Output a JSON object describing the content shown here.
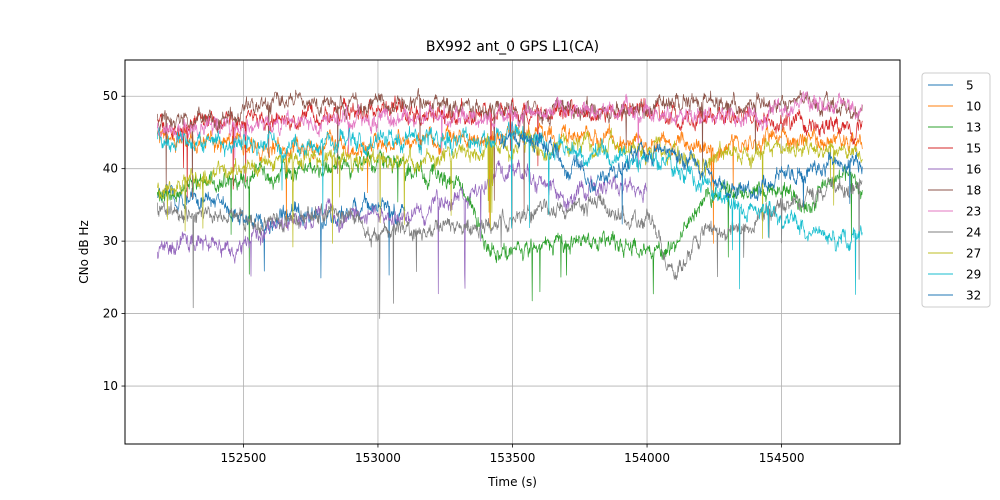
{
  "chart_data": {
    "type": "line",
    "title": "BX992 ant_0 GPS L1(CA)",
    "xlabel": "Time (s)",
    "ylabel": "CNo dB Hz",
    "xlim": [
      152060,
      154940
    ],
    "ylim": [
      2,
      55
    ],
    "xticks": [
      152500,
      153000,
      153500,
      154000,
      154500
    ],
    "yticks": [
      10,
      20,
      30,
      40,
      50
    ],
    "grid": true,
    "legend_position": "outside-right",
    "x_start": 152180,
    "x_end": 154800,
    "series": [
      {
        "name": "5",
        "color": "#1f77b4",
        "x": [
          152180,
          152300,
          152400,
          152500,
          152600,
          152700,
          152800,
          152900,
          153000,
          153100
        ],
        "y": [
          36,
          36,
          35,
          33,
          32,
          34,
          33,
          34,
          35,
          34
        ]
      },
      {
        "name": "10",
        "color": "#ff7f0e",
        "x": [
          152180,
          152300,
          152500,
          152800,
          153000,
          153200,
          153400,
          153500,
          153700,
          153900,
          154100,
          154300,
          154500,
          154700,
          154800
        ],
        "y": [
          45,
          44,
          43,
          43,
          43,
          44,
          44,
          45,
          44,
          44,
          43,
          43,
          44,
          44,
          44
        ]
      },
      {
        "name": "13",
        "color": "#2ca02c",
        "x": [
          152180,
          152400,
          152600,
          152800,
          153000,
          153100,
          153200,
          153300,
          153400,
          153500,
          153600,
          153800,
          154000,
          154100,
          154200,
          154300,
          154500,
          154600,
          154700,
          154800
        ],
        "y": [
          37,
          38,
          39,
          40,
          41,
          40,
          39,
          38,
          30,
          28,
          29,
          30,
          29,
          29,
          35,
          37,
          37,
          34,
          39,
          37
        ]
      },
      {
        "name": "15",
        "color": "#d62728",
        "x": [
          152180,
          152300,
          152450,
          152600,
          152800,
          153000,
          153200,
          153400,
          153600,
          153800,
          154000,
          154200,
          154400,
          154600,
          154800
        ],
        "y": [
          46,
          46,
          46,
          47,
          48,
          48,
          48,
          48,
          48,
          48,
          48,
          47,
          47,
          46,
          45
        ]
      },
      {
        "name": "16",
        "color": "#9467bd",
        "x": [
          152180,
          152300,
          152470,
          152600,
          152800,
          153000,
          153200,
          153300,
          153400,
          153500,
          153600,
          153700,
          153800,
          153900,
          154000
        ],
        "y": [
          29,
          30,
          29,
          32,
          34,
          33,
          34,
          36,
          38,
          40,
          38,
          36,
          37,
          38,
          37
        ]
      },
      {
        "name": "18",
        "color": "#8c564b",
        "x": [
          152180,
          152300,
          152450,
          152600,
          152800,
          153000,
          153200,
          153400,
          153600,
          153800,
          154000,
          154100,
          154200,
          154300,
          154400,
          154600,
          154800
        ],
        "y": [
          47,
          47,
          47,
          49,
          49,
          49,
          49,
          48,
          48,
          48,
          48,
          49,
          49,
          49,
          49,
          49,
          48
        ]
      },
      {
        "name": "23",
        "color": "#e377c2",
        "x": [
          152180,
          152400,
          152600,
          152800,
          153000,
          153200,
          153400,
          153600,
          153800,
          154000,
          154200,
          154400,
          154500,
          154600,
          154700,
          154800
        ],
        "y": [
          45,
          46,
          46,
          46,
          47,
          47,
          47,
          48,
          48,
          48,
          47,
          47,
          48,
          49,
          49,
          48
        ]
      },
      {
        "name": "24",
        "color": "#7f7f7f",
        "x": [
          152180,
          152300,
          152500,
          152700,
          152900,
          153000,
          153200,
          153400,
          153600,
          153800,
          154000,
          154100,
          154200,
          154400,
          154600,
          154700,
          154800
        ],
        "y": [
          35,
          34,
          33,
          33,
          34,
          31,
          32,
          32,
          34,
          35,
          33,
          25,
          31,
          33,
          36,
          37,
          37
        ]
      },
      {
        "name": "27",
        "color": "#bcbd22",
        "x": [
          152180,
          152300,
          152400,
          152500,
          152700,
          152900,
          153100,
          153300,
          153500,
          153700,
          153900,
          154100,
          154200,
          154300,
          154400,
          154600,
          154800
        ],
        "y": [
          37,
          38,
          39,
          40,
          41,
          41,
          41,
          42,
          43,
          43,
          43,
          42,
          40,
          42,
          42,
          43,
          42
        ]
      },
      {
        "name": "29",
        "color": "#17becf",
        "x": [
          152180,
          152300,
          152500,
          152700,
          152900,
          153100,
          153300,
          153400,
          153500,
          153700,
          153900,
          154100,
          154200,
          154300,
          154400,
          154500,
          154600,
          154700,
          154800
        ],
        "y": [
          45,
          44,
          43,
          43,
          44,
          44,
          44,
          44,
          45,
          43,
          41,
          40,
          38,
          36,
          34,
          33,
          32,
          30,
          31
        ]
      },
      {
        "name": "32",
        "color": "#1f77b4",
        "x": [
          153450,
          153500,
          153600,
          153700,
          153800,
          153900,
          154000,
          154100,
          154200,
          154300,
          154400,
          154500,
          154600,
          154700,
          154800
        ],
        "y": [
          44,
          45,
          44,
          41,
          38,
          40,
          43,
          42,
          40,
          37,
          37,
          39,
          40,
          41,
          41
        ]
      }
    ]
  }
}
